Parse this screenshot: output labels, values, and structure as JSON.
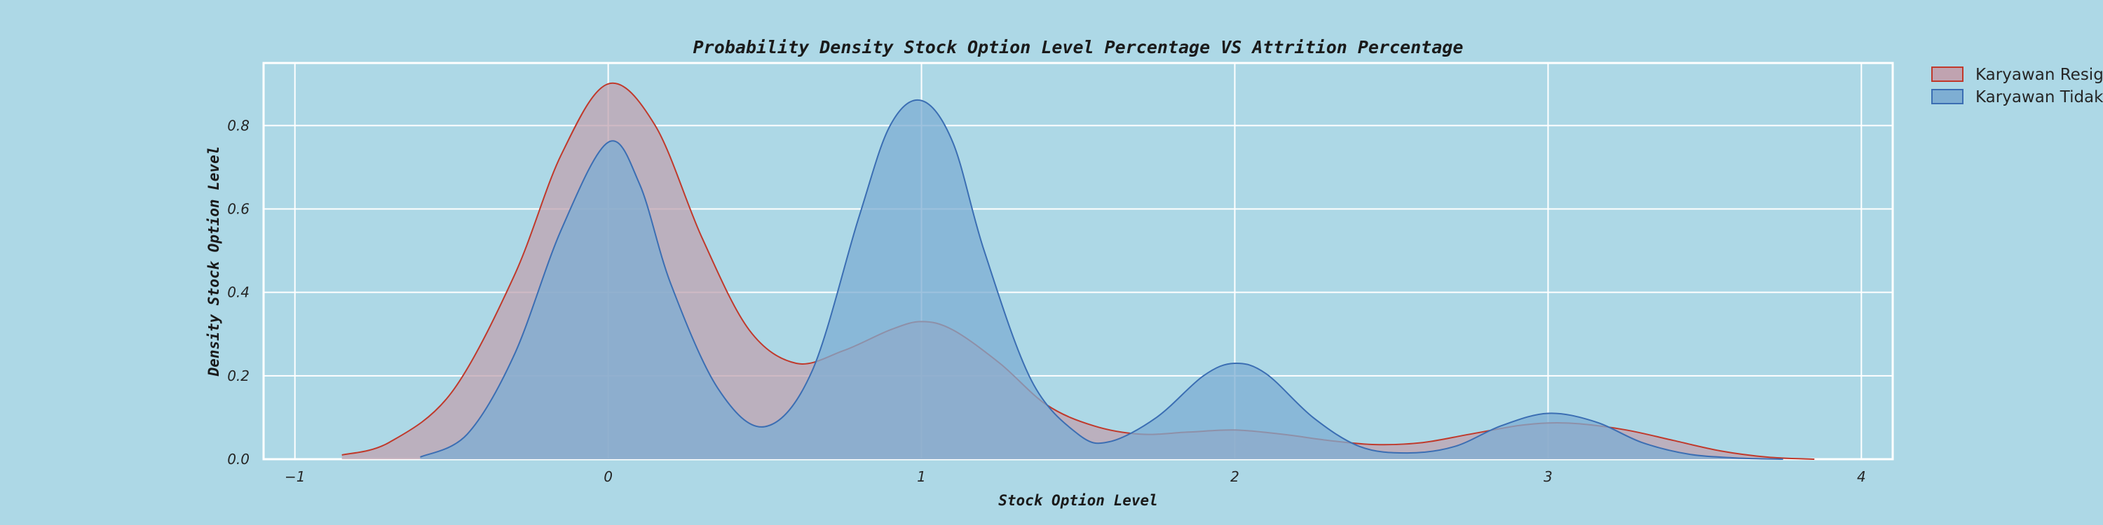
{
  "chart_data": {
    "type": "area",
    "title": "Probability Density Stock Option Level Percentage VS Attrition Percentage",
    "xlabel": "Stock Option Level",
    "ylabel": "Density Stock Option Level",
    "xlim": [
      -1.1,
      4.1
    ],
    "ylim": [
      0,
      0.95
    ],
    "x_ticks": [
      "−1",
      "0",
      "1",
      "2",
      "3",
      "4"
    ],
    "x_tick_values": [
      -1,
      0,
      1,
      2,
      3,
      4
    ],
    "y_ticks": [
      "0.0",
      "0.2",
      "0.4",
      "0.6",
      "0.8"
    ],
    "y_tick_values": [
      0,
      0.2,
      0.4,
      0.6,
      0.8
    ],
    "grid": true,
    "legend_position": "outside top-right",
    "series": [
      {
        "name": "Karyawan Resign",
        "color": "#c0392b",
        "fill": "#c0a3b0",
        "x": [
          -0.85,
          -0.7,
          -0.5,
          -0.3,
          -0.15,
          0.0,
          0.15,
          0.3,
          0.45,
          0.6,
          0.75,
          0.9,
          1.0,
          1.1,
          1.25,
          1.4,
          1.55,
          1.7,
          1.85,
          2.0,
          2.15,
          2.3,
          2.45,
          2.6,
          2.75,
          2.9,
          3.0,
          3.1,
          3.25,
          3.4,
          3.55,
          3.7,
          3.85
        ],
        "values": [
          0.01,
          0.04,
          0.16,
          0.44,
          0.73,
          0.9,
          0.8,
          0.53,
          0.31,
          0.23,
          0.26,
          0.31,
          0.33,
          0.31,
          0.23,
          0.13,
          0.08,
          0.06,
          0.065,
          0.07,
          0.06,
          0.045,
          0.035,
          0.04,
          0.06,
          0.08,
          0.087,
          0.085,
          0.07,
          0.045,
          0.02,
          0.005,
          0.0
        ]
      },
      {
        "name": "Karyawan Tidak Resign",
        "color": "#3b6eb3",
        "fill": "#7eaed3",
        "x": [
          -0.6,
          -0.45,
          -0.3,
          -0.15,
          0.0,
          0.1,
          0.2,
          0.35,
          0.5,
          0.65,
          0.8,
          0.9,
          1.0,
          1.1,
          1.2,
          1.35,
          1.5,
          1.6,
          1.75,
          1.9,
          2.0,
          2.1,
          2.25,
          2.4,
          2.55,
          2.7,
          2.85,
          3.0,
          3.15,
          3.3,
          3.45,
          3.6,
          3.75
        ],
        "values": [
          0.005,
          0.06,
          0.25,
          0.55,
          0.76,
          0.66,
          0.42,
          0.17,
          0.078,
          0.21,
          0.58,
          0.8,
          0.86,
          0.76,
          0.5,
          0.19,
          0.06,
          0.042,
          0.1,
          0.2,
          0.23,
          0.205,
          0.1,
          0.03,
          0.015,
          0.03,
          0.08,
          0.11,
          0.09,
          0.04,
          0.012,
          0.003,
          0.0
        ]
      }
    ]
  }
}
